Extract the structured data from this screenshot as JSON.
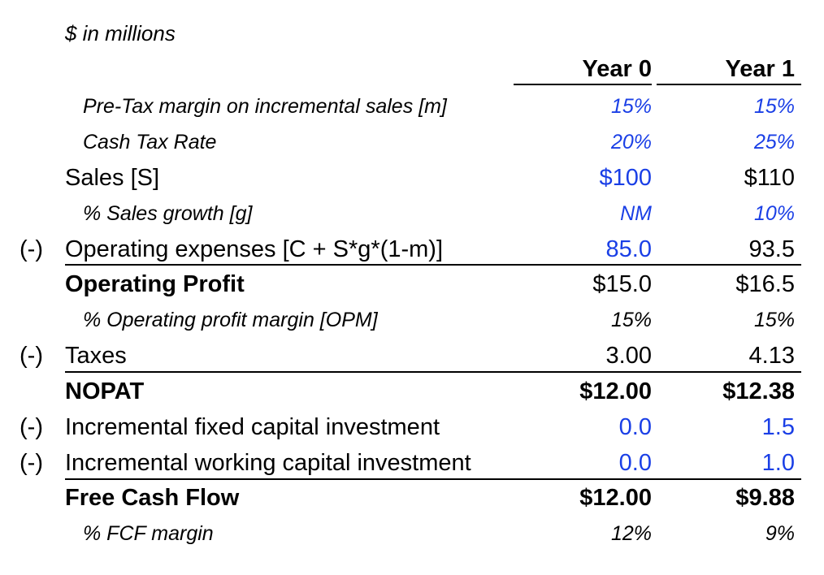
{
  "caption": "$ in millions",
  "headers": {
    "year0": "Year 0",
    "year1": "Year 1"
  },
  "colors": {
    "input": "#1a3fe6",
    "formula": "#000000"
  },
  "rows": [
    {
      "prefix": "",
      "label": "Pre-Tax margin on incremental sales [m]",
      "y0": "15%",
      "y1": "15%",
      "y0_color": "blue",
      "y1_color": "blue",
      "style": "sub"
    },
    {
      "prefix": "",
      "label": "Cash Tax Rate",
      "y0": "20%",
      "y1": "25%",
      "y0_color": "blue",
      "y1_color": "blue",
      "style": "sub"
    },
    {
      "prefix": "",
      "label": "Sales [S]",
      "y0": "$100",
      "y1": "$110",
      "y0_color": "blue",
      "y1_color": "black",
      "style": "normal"
    },
    {
      "prefix": "",
      "label": "% Sales growth [g]",
      "y0": "NM",
      "y1": "10%",
      "y0_color": "blue",
      "y1_color": "blue",
      "style": "sub"
    },
    {
      "prefix": "(-)",
      "label": "Operating expenses [C + S*g*(1-m)]",
      "y0": "85.0",
      "y1": "93.5",
      "y0_color": "blue",
      "y1_color": "black",
      "style": "normal"
    },
    {
      "prefix": "",
      "label": "Operating Profit",
      "y0": "$15.0",
      "y1": "$16.5",
      "y0_color": "black",
      "y1_color": "black",
      "style": "bold-label"
    },
    {
      "prefix": "",
      "label": "% Operating profit margin [OPM]",
      "y0": "15%",
      "y1": "15%",
      "y0_color": "black",
      "y1_color": "black",
      "style": "sub"
    },
    {
      "prefix": "(-)",
      "label": "Taxes",
      "y0": "3.00",
      "y1": "4.13",
      "y0_color": "black",
      "y1_color": "black",
      "style": "normal"
    },
    {
      "prefix": "",
      "label": "NOPAT",
      "y0": "$12.00",
      "y1": "$12.38",
      "y0_color": "black",
      "y1_color": "black",
      "style": "bold"
    },
    {
      "prefix": "(-)",
      "label": "Incremental fixed capital investment",
      "y0": "0.0",
      "y1": "1.5",
      "y0_color": "blue",
      "y1_color": "blue",
      "style": "normal"
    },
    {
      "prefix": "(-)",
      "label": "Incremental working capital investment",
      "y0": "0.0",
      "y1": "1.0",
      "y0_color": "blue",
      "y1_color": "blue",
      "style": "normal"
    },
    {
      "prefix": "",
      "label": "Free Cash Flow",
      "y0": "$12.00",
      "y1": "$9.88",
      "y0_color": "black",
      "y1_color": "black",
      "style": "bold"
    },
    {
      "prefix": "",
      "label": "% FCF margin",
      "y0": "12%",
      "y1": "9%",
      "y0_color": "black",
      "y1_color": "black",
      "style": "sub"
    }
  ]
}
